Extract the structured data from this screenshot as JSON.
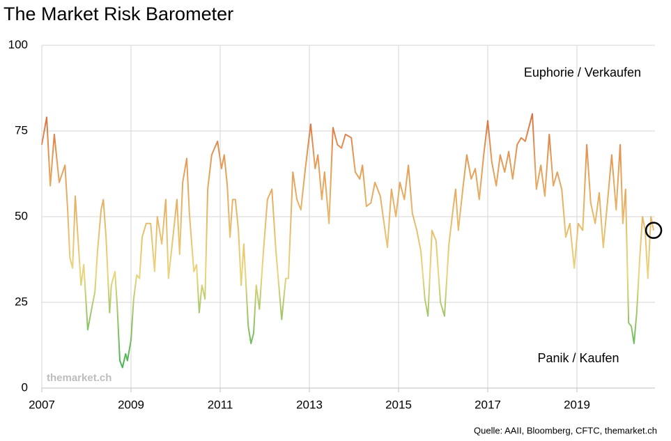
{
  "chart_data": {
    "type": "line",
    "title": "The Market Risk Barometer",
    "annotations": [
      "Euphorie / Verkaufen",
      "Panik / Kaufen",
      "themarket.ch"
    ],
    "source": "Quelle: AAII, Bloomberg, CFTC, themarket.ch",
    "xlim": [
      2007,
      2020.75
    ],
    "xticks": [
      2007,
      2009,
      2011,
      2013,
      2015,
      2017,
      2019
    ],
    "ylim": [
      0,
      100
    ],
    "yticks": [
      0,
      25,
      50,
      75,
      100
    ],
    "grid": true,
    "gradient_colors": [
      "#1fae4a",
      "#ead57c",
      "#e59a56",
      "#c0392b"
    ],
    "highlight_color": "#000000",
    "x": [
      2007.0,
      2007.11,
      2007.19,
      2007.28,
      2007.39,
      2007.52,
      2007.58,
      2007.63,
      2007.69,
      2007.75,
      2007.81,
      2007.88,
      2007.94,
      2008.03,
      2008.13,
      2008.19,
      2008.25,
      2008.33,
      2008.38,
      2008.44,
      2008.52,
      2008.56,
      2008.64,
      2008.69,
      2008.75,
      2008.81,
      2008.88,
      2008.92,
      2009.0,
      2009.06,
      2009.13,
      2009.19,
      2009.25,
      2009.34,
      2009.44,
      2009.53,
      2009.59,
      2009.69,
      2009.78,
      2009.84,
      2009.94,
      2010.03,
      2010.09,
      2010.16,
      2010.25,
      2010.31,
      2010.41,
      2010.47,
      2010.53,
      2010.59,
      2010.66,
      2010.72,
      2010.81,
      2010.94,
      2011.03,
      2011.09,
      2011.16,
      2011.22,
      2011.28,
      2011.34,
      2011.41,
      2011.47,
      2011.53,
      2011.63,
      2011.69,
      2011.75,
      2011.81,
      2011.88,
      2011.97,
      2012.06,
      2012.16,
      2012.25,
      2012.38,
      2012.47,
      2012.53,
      2012.63,
      2012.72,
      2012.81,
      2012.91,
      2013.03,
      2013.13,
      2013.19,
      2013.28,
      2013.34,
      2013.44,
      2013.53,
      2013.63,
      2013.72,
      2013.81,
      2013.94,
      2014.03,
      2014.13,
      2014.19,
      2014.28,
      2014.38,
      2014.47,
      2014.59,
      2014.75,
      2014.84,
      2014.94,
      2015.03,
      2015.13,
      2015.22,
      2015.31,
      2015.41,
      2015.5,
      2015.59,
      2015.66,
      2015.75,
      2015.84,
      2015.94,
      2016.03,
      2016.13,
      2016.22,
      2016.28,
      2016.34,
      2016.44,
      2016.53,
      2016.63,
      2016.72,
      2016.81,
      2016.91,
      2017.0,
      2017.09,
      2017.19,
      2017.28,
      2017.38,
      2017.47,
      2017.56,
      2017.66,
      2017.75,
      2017.84,
      2017.94,
      2018.0,
      2018.09,
      2018.19,
      2018.28,
      2018.38,
      2018.47,
      2018.56,
      2018.66,
      2018.75,
      2018.84,
      2018.94,
      2019.03,
      2019.13,
      2019.22,
      2019.31,
      2019.41,
      2019.5,
      2019.59,
      2019.69,
      2019.78,
      2019.88,
      2019.97,
      2020.03,
      2020.09,
      2020.16,
      2020.22,
      2020.28,
      2020.34,
      2020.41,
      2020.47,
      2020.53,
      2020.59,
      2020.66,
      2020.72
    ],
    "values": [
      71,
      79,
      59,
      74,
      60,
      65,
      52,
      38,
      35,
      56,
      44,
      30,
      36,
      17,
      24,
      28,
      40,
      52,
      55,
      44,
      22,
      30,
      34,
      24,
      8,
      6,
      10,
      8,
      14,
      26,
      33,
      32,
      44,
      48,
      48,
      34,
      50,
      42,
      55,
      32,
      44,
      55,
      39,
      60,
      67,
      51,
      34,
      36,
      22,
      30,
      26,
      58,
      68,
      72,
      64,
      68,
      59,
      44,
      55,
      55,
      46,
      30,
      42,
      18,
      13,
      16,
      30,
      23,
      40,
      55,
      58,
      40,
      20,
      32,
      32,
      63,
      55,
      52,
      64,
      77,
      64,
      68,
      55,
      63,
      48,
      76,
      71,
      70,
      74,
      73,
      63,
      61,
      65,
      53,
      54,
      60,
      56,
      41,
      58,
      50,
      60,
      55,
      65,
      51,
      46,
      40,
      26,
      21,
      46,
      43,
      25,
      21,
      42,
      52,
      58,
      46,
      58,
      68,
      61,
      64,
      55,
      68,
      78,
      66,
      59,
      68,
      63,
      69,
      61,
      71,
      73,
      72,
      77,
      80,
      58,
      65,
      56,
      74,
      59,
      63,
      58,
      44,
      48,
      35,
      48,
      46,
      71,
      54,
      48,
      57,
      41,
      55,
      68,
      52,
      71,
      48,
      58,
      19,
      18,
      13,
      22,
      38,
      50,
      46,
      32,
      50,
      46
    ]
  }
}
